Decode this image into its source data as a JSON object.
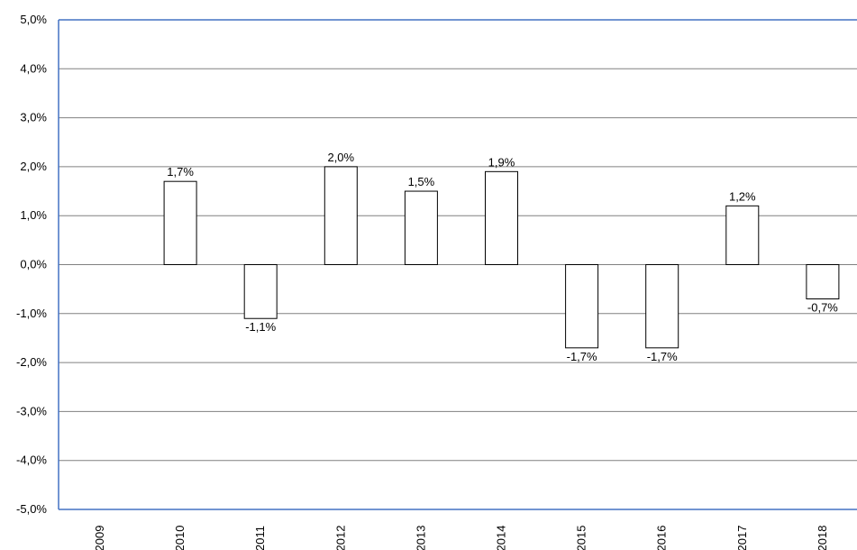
{
  "chart_data": {
    "type": "bar",
    "title": "",
    "xlabel": "",
    "ylabel": "",
    "categories": [
      "2009",
      "2010",
      "2011",
      "2012",
      "2013",
      "2014",
      "2015",
      "2016",
      "2017",
      "2018"
    ],
    "series": [
      {
        "values": [
          null,
          1.7,
          -1.1,
          2.0,
          1.5,
          1.9,
          -1.7,
          -1.7,
          1.2,
          -0.7
        ],
        "data_labels": [
          "",
          "1,7%",
          "-1,1%",
          "2,0%",
          "1,5%",
          "1,9%",
          "-1,7%",
          "-1,7%",
          "1,2%",
          "-0,7%"
        ]
      }
    ],
    "ylim": [
      -5,
      5
    ],
    "y_ticks": [
      5,
      4,
      3,
      2,
      1,
      0,
      -1,
      -2,
      -3,
      -4,
      -5
    ],
    "y_tick_labels": [
      "5,0%",
      "4,0%",
      "3,0%",
      "2,0%",
      "1,0%",
      "0,0%",
      "-1,0%",
      "-2,0%",
      "-3,0%",
      "-4,0%",
      "-5,0%"
    ],
    "grid": true,
    "legend": "none",
    "colors": {
      "bar_fill": "#ffffff",
      "bar_stroke": "#000000",
      "gridline": "#808080",
      "axis": "#4472c4"
    }
  }
}
